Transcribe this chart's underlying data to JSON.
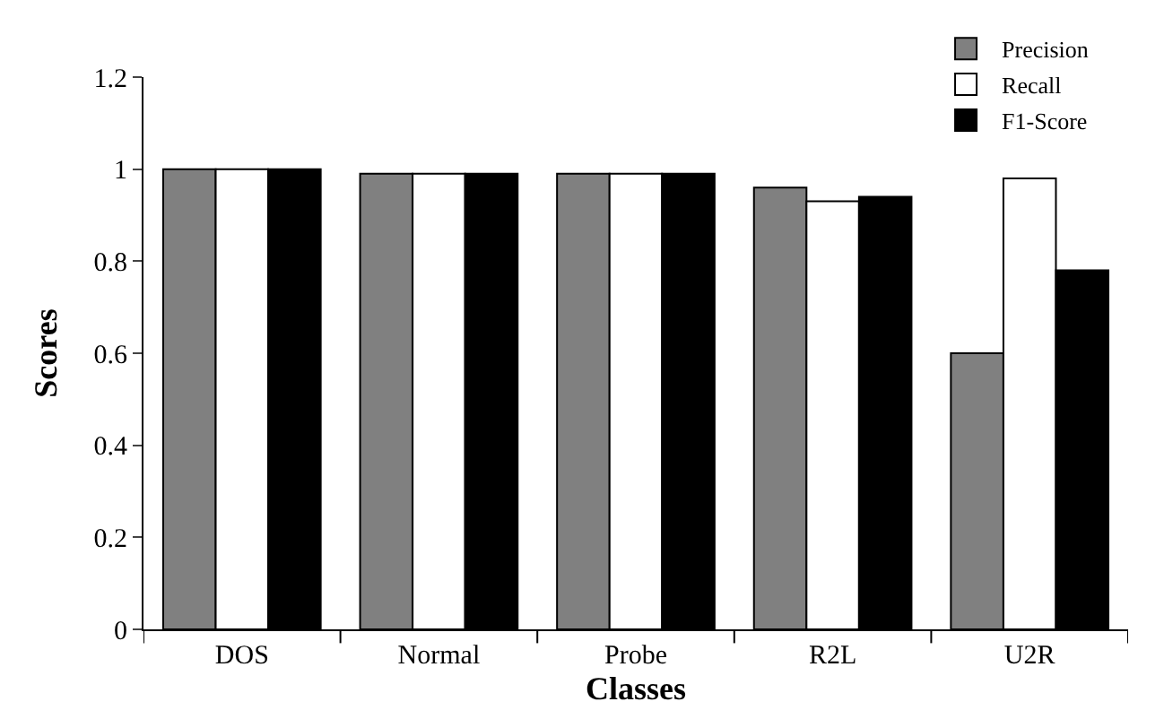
{
  "chart_data": {
    "type": "bar",
    "xlabel": "Classes",
    "ylabel": "Scores",
    "categories": [
      "DOS",
      "Normal",
      "Probe",
      "R2L",
      "U2R"
    ],
    "series": [
      {
        "name": "Precision",
        "color": "#808080",
        "values": [
          1.0,
          0.99,
          0.99,
          0.96,
          0.6
        ]
      },
      {
        "name": "Recall",
        "color": "#ffffff",
        "values": [
          1.0,
          0.99,
          0.99,
          0.93,
          0.98
        ]
      },
      {
        "name": "F1-Score",
        "color": "#000000",
        "values": [
          1.0,
          0.99,
          0.99,
          0.94,
          0.78
        ]
      }
    ],
    "ylim": [
      0,
      1.2
    ],
    "yticks": [
      0,
      0.2,
      0.4,
      0.6,
      0.8,
      1,
      1.2
    ],
    "grid": false,
    "legend": "top right"
  }
}
